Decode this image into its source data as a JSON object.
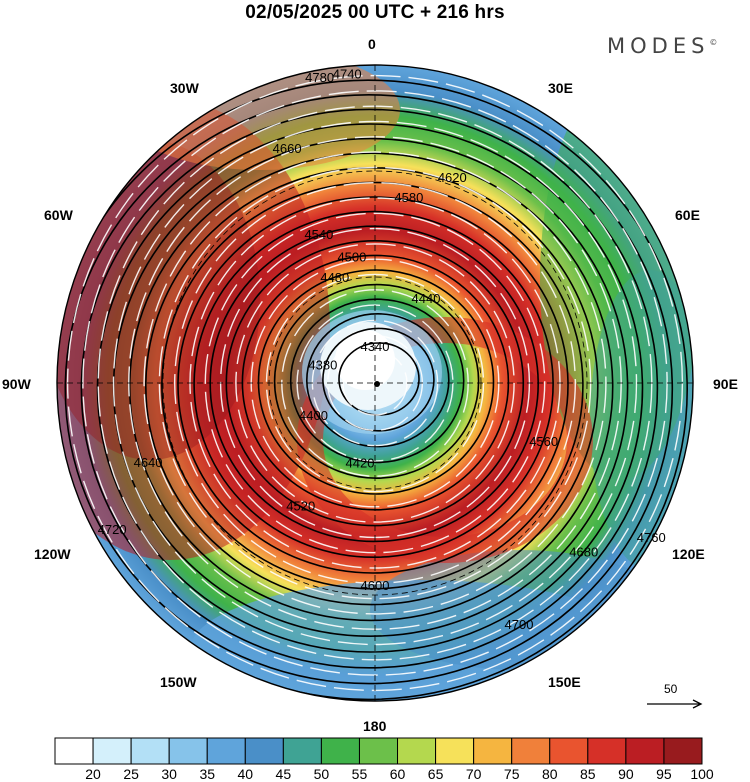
{
  "header": {
    "title": "02/05/2025  00 UTC  + 216 hrs",
    "brand": "MODES"
  },
  "map": {
    "projection": "polar-stereographic-south",
    "field": "500 hPa geopotential height (contours) and wind speed (shaded)",
    "longitude_labels": {
      "top": "0",
      "top_right": "30E",
      "upper_right": "60E",
      "right": "90E",
      "lower_right": "120E",
      "bottom_right": "150E",
      "bottom": "180",
      "bottom_left": "150W",
      "lower_left": "120W",
      "left": "90W",
      "upper_left": "60W",
      "top_left": "30W"
    },
    "contour_labels": [
      "4340",
      "4380",
      "4400",
      "4420",
      "4440",
      "4480",
      "4500",
      "4520",
      "4540",
      "4560",
      "4580",
      "4600",
      "4620",
      "4640",
      "4660",
      "4680",
      "4700",
      "4720",
      "4740",
      "4760",
      "4780"
    ],
    "wind_reference_label": "50"
  },
  "colorbar": {
    "levels": [
      "20",
      "25",
      "30",
      "35",
      "40",
      "45",
      "50",
      "55",
      "60",
      "65",
      "70",
      "75",
      "80",
      "85",
      "90",
      "95",
      "100"
    ],
    "colors": [
      "#ffffff",
      "#d4f0fb",
      "#b3e0f6",
      "#86c3ea",
      "#5fa4db",
      "#4a8fc8",
      "#3fa394",
      "#3fb24a",
      "#6cc04a",
      "#b4d84e",
      "#f6e15a",
      "#f5b540",
      "#f0803a",
      "#e9542f",
      "#d63028",
      "#bb1e23",
      "#981b1e"
    ]
  }
}
